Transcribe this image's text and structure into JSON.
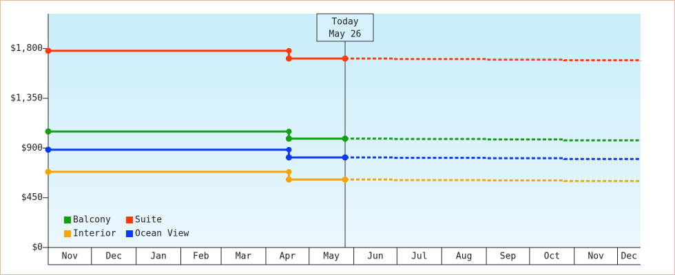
{
  "chart_data": {
    "type": "line",
    "step": true,
    "x": [
      0,
      167,
      206,
      239,
      304,
      358,
      411
    ],
    "xlim": [
      0,
      411
    ],
    "months": [
      {
        "value": 0,
        "label": "Nov"
      },
      {
        "value": 30,
        "label": "Dec"
      },
      {
        "value": 61,
        "label": "Jan"
      },
      {
        "value": 92,
        "label": "Feb"
      },
      {
        "value": 120,
        "label": "Mar"
      },
      {
        "value": 151,
        "label": "Apr"
      },
      {
        "value": 181,
        "label": "May"
      },
      {
        "value": 212,
        "label": "Jun"
      },
      {
        "value": 242,
        "label": "Jul"
      },
      {
        "value": 273,
        "label": "Aug"
      },
      {
        "value": 304,
        "label": "Sep"
      },
      {
        "value": 334,
        "label": "Oct"
      },
      {
        "value": 365,
        "label": "Nov"
      },
      {
        "value": 395,
        "label": "Dec"
      }
    ],
    "today": {
      "value": 206,
      "label": "Today",
      "date": "May 26"
    },
    "ylim": [
      0,
      2115
    ],
    "yticks": [
      {
        "value": 0,
        "label": "$0"
      },
      {
        "value": 450,
        "label": "$450"
      },
      {
        "value": 900,
        "label": "$900"
      },
      {
        "value": 1350,
        "label": "$1,350"
      },
      {
        "value": 1800,
        "label": "$1,800"
      }
    ],
    "series": [
      {
        "name": "Balcony",
        "color": "#11a011",
        "values": [
          1050,
          985,
          985,
          null,
          null,
          null,
          null
        ],
        "forecast": [
          null,
          null,
          985,
          982,
          978,
          970,
          965
        ]
      },
      {
        "name": "Suite",
        "color": "#ff3a0a",
        "values": [
          1780,
          1710,
          1710,
          null,
          null,
          null,
          null
        ],
        "forecast": [
          null,
          null,
          1710,
          1705,
          1700,
          1694,
          1688
        ]
      },
      {
        "name": "Interior",
        "color": "#f5a50a",
        "values": [
          685,
          615,
          615,
          null,
          null,
          null,
          null
        ],
        "forecast": [
          null,
          null,
          615,
          610,
          607,
          602,
          598
        ]
      },
      {
        "name": "Ocean View",
        "color": "#0a3af5",
        "values": [
          885,
          815,
          815,
          null,
          null,
          null,
          null
        ],
        "forecast": [
          null,
          null,
          815,
          811,
          808,
          801,
          797
        ]
      }
    ]
  }
}
